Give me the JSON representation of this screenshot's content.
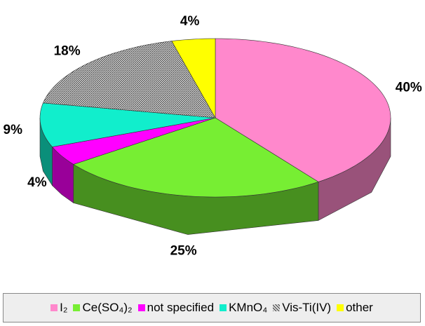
{
  "chart_data": {
    "type": "pie",
    "categories": [
      "I₂",
      "Ce(SO₄)₂",
      "not specified",
      "KMnO₄",
      "Vis-Ti(IV)",
      "other"
    ],
    "values": [
      40,
      25,
      4,
      9,
      18,
      4
    ],
    "value_labels": [
      "40%",
      "25%",
      "4%",
      "9%",
      "18%",
      "4%"
    ],
    "colors": [
      "#ff88cc",
      "#77ee33",
      "#ff00ff",
      "#11eecc",
      "#8c8c8c",
      "#ffff00"
    ],
    "legend": "bottom"
  }
}
